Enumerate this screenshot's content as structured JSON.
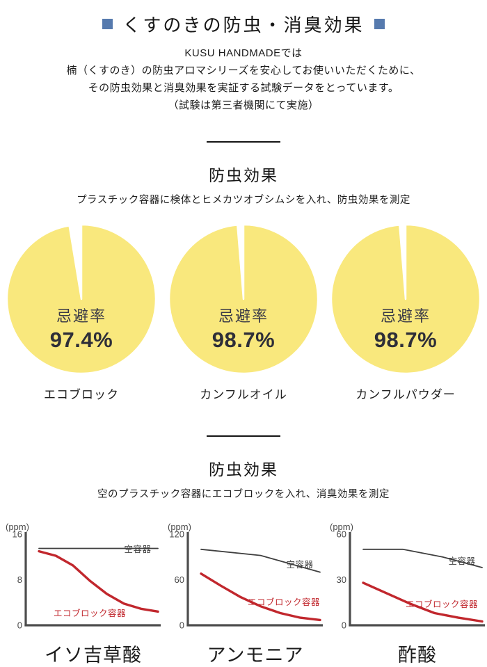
{
  "header": {
    "title": "くすのきの防虫・消臭効果",
    "intro_lines": [
      "KUSU HANDMADEでは",
      "楠（くすのき）の防虫アロマシリーズを安心してお使いいただくために、",
      "その防虫効果と消臭効果を実証する試験データをとっています。",
      "（試験は第三者機関にて実施）"
    ]
  },
  "section1": {
    "heading": "防虫効果",
    "subtitle": "プラスチック容器に検体とヒメカツオブシムシを入れ、防虫効果を測定"
  },
  "section2": {
    "heading": "防虫効果",
    "subtitle": "空のプラスチック容器にエコブロックを入れ、消臭効果を測定"
  },
  "colors": {
    "accent_blue": "#567aae",
    "pie_yellow": "#f9e87d",
    "line_red": "#c1272d",
    "line_gray": "#3f3f3f"
  },
  "chart_data": [
    {
      "type": "pie",
      "caption": "エコブロック",
      "center_label": "忌避率",
      "value_label": "97.4%",
      "percent": 97.4,
      "slices": [
        {
          "name": "忌避",
          "value": 97.4,
          "color": "#f9e87d"
        },
        {
          "name": "残り",
          "value": 2.6,
          "color": "#ffffff"
        }
      ]
    },
    {
      "type": "pie",
      "caption": "カンフルオイル",
      "center_label": "忌避率",
      "value_label": "98.7%",
      "percent": 98.7,
      "slices": [
        {
          "name": "忌避",
          "value": 98.7,
          "color": "#f9e87d"
        },
        {
          "name": "残り",
          "value": 1.3,
          "color": "#ffffff"
        }
      ]
    },
    {
      "type": "pie",
      "caption": "カンフルパウダー",
      "center_label": "忌避率",
      "value_label": "98.7%",
      "percent": 98.7,
      "slices": [
        {
          "name": "忌避",
          "value": 98.7,
          "color": "#f9e87d"
        },
        {
          "name": "残り",
          "value": 1.3,
          "color": "#ffffff"
        }
      ]
    },
    {
      "type": "line",
      "xlabel": "イソ吉草酸",
      "unit_label": "(ppm)",
      "ylim": [
        0,
        16
      ],
      "yticks": [
        16,
        8,
        0
      ],
      "grid": false,
      "series": [
        {
          "name": "空容器",
          "color": "#3f3f3f",
          "values": [
            13.5,
            13.5,
            13.5,
            13.5
          ]
        },
        {
          "name": "エコブロック容器",
          "color": "#c1272d",
          "values": [
            13,
            12.2,
            10.5,
            7.8,
            5.5,
            3.8,
            2.9,
            2.4
          ]
        }
      ]
    },
    {
      "type": "line",
      "xlabel": "アンモニア",
      "unit_label": "(ppm)",
      "ylim": [
        0,
        120
      ],
      "yticks": [
        120,
        60,
        0
      ],
      "grid": false,
      "series": [
        {
          "name": "空容器",
          "color": "#3f3f3f",
          "values": [
            100,
            92,
            70
          ]
        },
        {
          "name": "エコブロック容器",
          "color": "#c1272d",
          "values": [
            68,
            52,
            37,
            25,
            16,
            10,
            7
          ]
        }
      ]
    },
    {
      "type": "line",
      "xlabel": "酢酸",
      "unit_label": "(ppm)",
      "ylim": [
        0,
        60
      ],
      "yticks": [
        60,
        30,
        0
      ],
      "grid": false,
      "series": [
        {
          "name": "空容器",
          "color": "#3f3f3f",
          "values": [
            50,
            50,
            45,
            38
          ]
        },
        {
          "name": "エコブロック容器",
          "color": "#c1272d",
          "values": [
            28,
            21,
            14,
            8,
            5,
            2.5
          ]
        }
      ]
    }
  ]
}
